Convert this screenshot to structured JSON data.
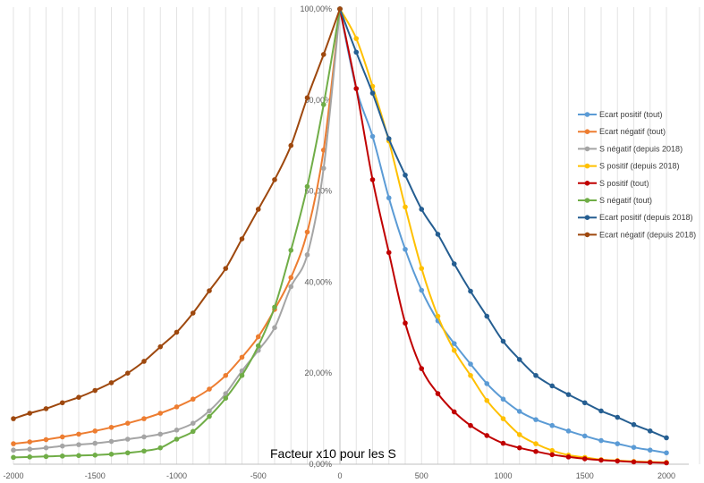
{
  "chart_data": {
    "type": "line",
    "annotation": "Facteur x10 pour les S",
    "x_ticks": [
      "-2000",
      "-1500",
      "-1000",
      "-500",
      "0",
      "500",
      "1000",
      "1500",
      "2000"
    ],
    "y_ticks": [
      "0,00%",
      "20,00%",
      "40,00%",
      "60,00%",
      "80,00%",
      "100,00%"
    ],
    "xlim": [
      -2000,
      2000
    ],
    "ylim": [
      0,
      100
    ],
    "grid": "vertical",
    "legend_position": "right",
    "x": [
      -2000,
      -1900,
      -1800,
      -1700,
      -1600,
      -1500,
      -1400,
      -1300,
      -1200,
      -1100,
      -1000,
      -900,
      -800,
      -700,
      -600,
      -500,
      -400,
      -300,
      -200,
      -100,
      0,
      100,
      200,
      300,
      400,
      500,
      600,
      700,
      800,
      900,
      1000,
      1100,
      1200,
      1300,
      1400,
      1500,
      1600,
      1700,
      1800,
      1900,
      2000
    ],
    "series": [
      {
        "name": "Ecart positif (tout)",
        "color": "#5b9bd5",
        "values": [
          null,
          null,
          null,
          null,
          null,
          null,
          null,
          null,
          null,
          null,
          null,
          null,
          null,
          null,
          null,
          null,
          null,
          null,
          null,
          null,
          100,
          82.5,
          72,
          58.5,
          47.2,
          38.2,
          31.5,
          26.5,
          22,
          17.7,
          14.3,
          11.6,
          9.8,
          8.5,
          7.3,
          6.2,
          5.2,
          4.5,
          3.7,
          3.1,
          2.5
        ]
      },
      {
        "name": "Ecart négatif (tout)",
        "color": "#ed7d31",
        "values": [
          4.5,
          4.9,
          5.4,
          6,
          6.6,
          7.3,
          8.1,
          9,
          10,
          11.2,
          12.6,
          14.3,
          16.5,
          19.5,
          23.5,
          28,
          34,
          41,
          51,
          69,
          100,
          null,
          null,
          null,
          null,
          null,
          null,
          null,
          null,
          null,
          null,
          null,
          null,
          null,
          null,
          null,
          null,
          null,
          null,
          null,
          null
        ]
      },
      {
        "name": "S négatif (depuis 2018)",
        "color": "#a5a5a5",
        "values": [
          3.1,
          3.3,
          3.6,
          4,
          4.3,
          4.6,
          5,
          5.5,
          6,
          6.6,
          7.5,
          9,
          11.7,
          15.5,
          20.5,
          25,
          30,
          39,
          46,
          65,
          100,
          null,
          null,
          null,
          null,
          null,
          null,
          null,
          null,
          null,
          null,
          null,
          null,
          null,
          null,
          null,
          null,
          null,
          null,
          null,
          null
        ]
      },
      {
        "name": "S positif (depuis 2018)",
        "color": "#ffc000",
        "values": [
          null,
          null,
          null,
          null,
          null,
          null,
          null,
          null,
          null,
          null,
          null,
          null,
          null,
          null,
          null,
          null,
          null,
          null,
          null,
          null,
          100,
          93.5,
          83,
          71,
          56.5,
          43,
          32.5,
          25,
          19.5,
          14,
          10,
          6.5,
          4.5,
          3,
          2,
          1.5,
          1,
          0.8,
          0.6,
          0.5,
          0.4
        ]
      },
      {
        "name": "S positif (tout)",
        "color": "#c00000",
        "values": [
          null,
          null,
          null,
          null,
          null,
          null,
          null,
          null,
          null,
          null,
          null,
          null,
          null,
          null,
          null,
          null,
          null,
          null,
          null,
          null,
          100,
          82.5,
          62.5,
          46.5,
          31,
          21,
          15.5,
          11.5,
          8.5,
          6.3,
          4.6,
          3.6,
          2.8,
          2.1,
          1.6,
          1.2,
          0.9,
          0.7,
          0.5,
          0.4,
          0.3
        ]
      },
      {
        "name": "S négatif (tout)",
        "color": "#70ad47",
        "values": [
          1.5,
          1.6,
          1.7,
          1.8,
          1.9,
          2,
          2.2,
          2.5,
          2.9,
          3.6,
          5.5,
          7.2,
          10.5,
          14.5,
          19.5,
          26,
          34.5,
          47,
          61,
          79,
          100,
          null,
          null,
          null,
          null,
          null,
          null,
          null,
          null,
          null,
          null,
          null,
          null,
          null,
          null,
          null,
          null,
          null,
          null,
          null,
          null
        ]
      },
      {
        "name": "Ecart positif (depuis 2018)",
        "color": "#255e91",
        "values": [
          null,
          null,
          null,
          null,
          null,
          null,
          null,
          null,
          null,
          null,
          null,
          null,
          null,
          null,
          null,
          null,
          null,
          null,
          null,
          null,
          100,
          90.5,
          81.5,
          71.5,
          63.5,
          56,
          50.5,
          44,
          38,
          32.5,
          27,
          23,
          19.5,
          17.2,
          15.3,
          13.5,
          11.7,
          10.3,
          8.7,
          7.3,
          5.8
        ]
      },
      {
        "name": "Ecart négatif (depuis 2018)",
        "color": "#9e480e",
        "values": [
          10,
          11.2,
          12.2,
          13.5,
          14.7,
          16.2,
          17.9,
          20,
          22.6,
          25.8,
          29,
          33.2,
          38.1,
          43,
          49.5,
          56,
          62.5,
          70,
          80.5,
          90,
          100,
          null,
          null,
          null,
          null,
          null,
          null,
          null,
          null,
          null,
          null,
          null,
          null,
          null,
          null,
          null,
          null,
          null,
          null,
          null,
          null
        ]
      }
    ]
  }
}
